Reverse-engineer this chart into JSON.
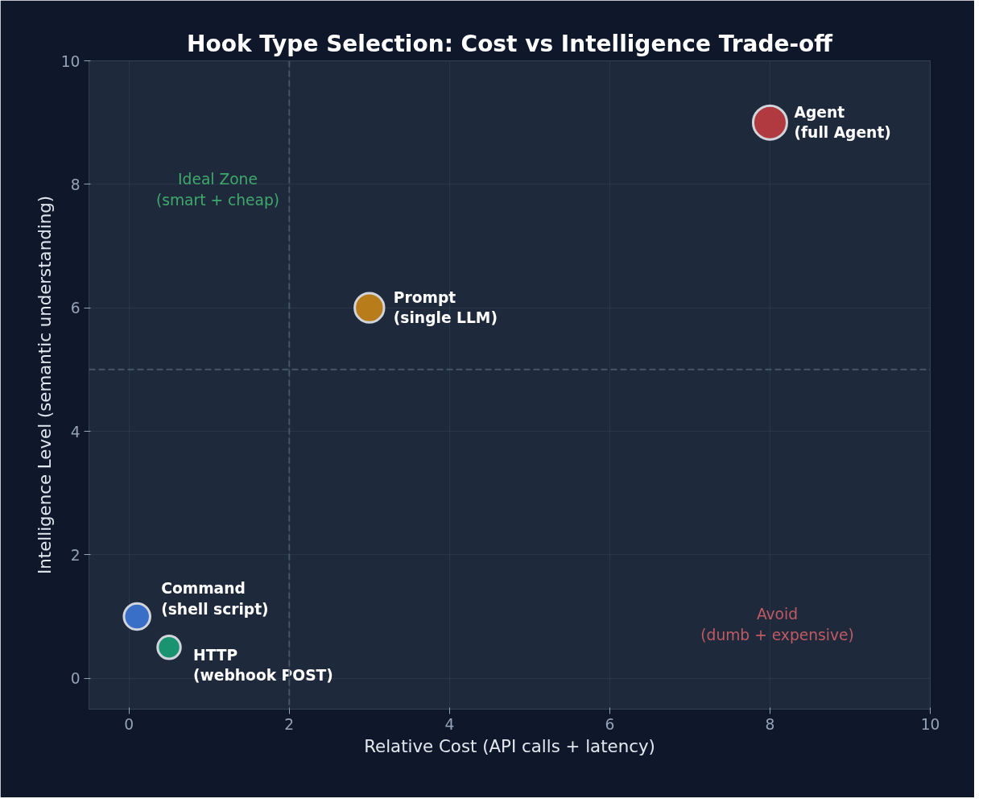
{
  "chart_data": {
    "type": "bubble",
    "title": "Hook Type Selection: Cost vs Intelligence Trade-off",
    "xlabel": "Relative Cost (API calls + latency)",
    "ylabel": "Intelligence Level (semantic understanding)",
    "x": [
      0.1,
      0.5,
      3,
      8
    ],
    "values": [
      1.0,
      0.5,
      6,
      9
    ],
    "sizes": [
      0.6,
      0.46,
      0.75,
      1
    ],
    "colors": [
      "#3a6fc8",
      "#1a9470",
      "#b87d1a",
      "#b03a40"
    ],
    "xlim": [
      -0.5,
      10
    ],
    "ylim": [
      -0.5,
      10
    ],
    "xticks": [
      0,
      2,
      4,
      6,
      8,
      10
    ],
    "yticks": [
      0,
      2,
      4,
      6,
      8,
      10
    ],
    "grid": true,
    "ref_lines": [
      {
        "axis": "x",
        "value": 2,
        "color": "#475569",
        "line_style": "dashed"
      },
      {
        "axis": "y",
        "value": 5,
        "color": "#475569",
        "line_style": "dashed"
      }
    ],
    "annotations": [
      {
        "text": "Command\n(shell script)",
        "x": 0.1,
        "y": 1.0
      },
      {
        "text": "HTTP\n(webhook POST)",
        "x": 0.5,
        "y": 0.5
      },
      {
        "text": "Prompt\n(single LLM)",
        "x": 3,
        "y": 6
      },
      {
        "text": "Agent\n(full Agent)",
        "x": 8,
        "y": 9
      },
      "Ideal Zone\n(smart + cheap)",
      "Avoid\n(dumb + expensive)"
    ]
  }
}
